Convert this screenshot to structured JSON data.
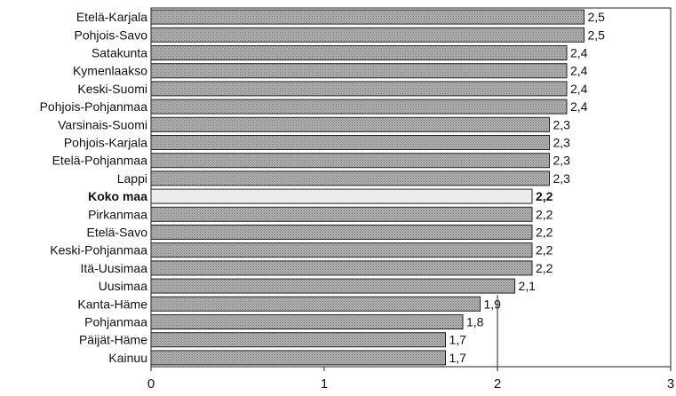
{
  "chart_data": {
    "type": "bar",
    "orientation": "horizontal",
    "categories": [
      "Etelä-Karjala",
      "Pohjois-Savo",
      "Satakunta",
      "Kymenlaakso",
      "Keski-Suomi",
      "Pohjois-Pohjanmaa",
      "Varsinais-Suomi",
      "Pohjois-Karjala",
      "Etelä-Pohjanmaa",
      "Lappi",
      "Koko maa",
      "Pirkanmaa",
      "Etelä-Savo",
      "Keski-Pohjanmaa",
      "Itä-Uusimaa",
      "Uusimaa",
      "Kanta-Häme",
      "Pohjanmaa",
      "Päijät-Häme",
      "Kainuu"
    ],
    "values": [
      2.5,
      2.5,
      2.4,
      2.4,
      2.4,
      2.4,
      2.3,
      2.3,
      2.3,
      2.3,
      2.2,
      2.2,
      2.2,
      2.2,
      2.2,
      2.1,
      1.9,
      1.8,
      1.7,
      1.7
    ],
    "value_labels": [
      "2,5",
      "2,5",
      "2,4",
      "2,4",
      "2,4",
      "2,4",
      "2,3",
      "2,3",
      "2,3",
      "2,3",
      "2,2",
      "2,2",
      "2,2",
      "2,2",
      "2,2",
      "2,1",
      "1,9",
      "1,8",
      "1,7",
      "1,7"
    ],
    "highlight_category": "Koko maa",
    "xlim": [
      0,
      3
    ],
    "x_ticks": [
      0,
      1,
      2,
      3
    ],
    "x_tick_labels": [
      "0",
      "1",
      "2",
      "3"
    ],
    "reference_line_x": 2,
    "title": "",
    "xlabel": "",
    "ylabel": "",
    "grid": false,
    "legend": "none",
    "colors": {
      "bar_fill": "#9a9a9a",
      "bar_highlight": "#ececec",
      "bar_stroke": "#222222",
      "axis": "#222222"
    }
  }
}
